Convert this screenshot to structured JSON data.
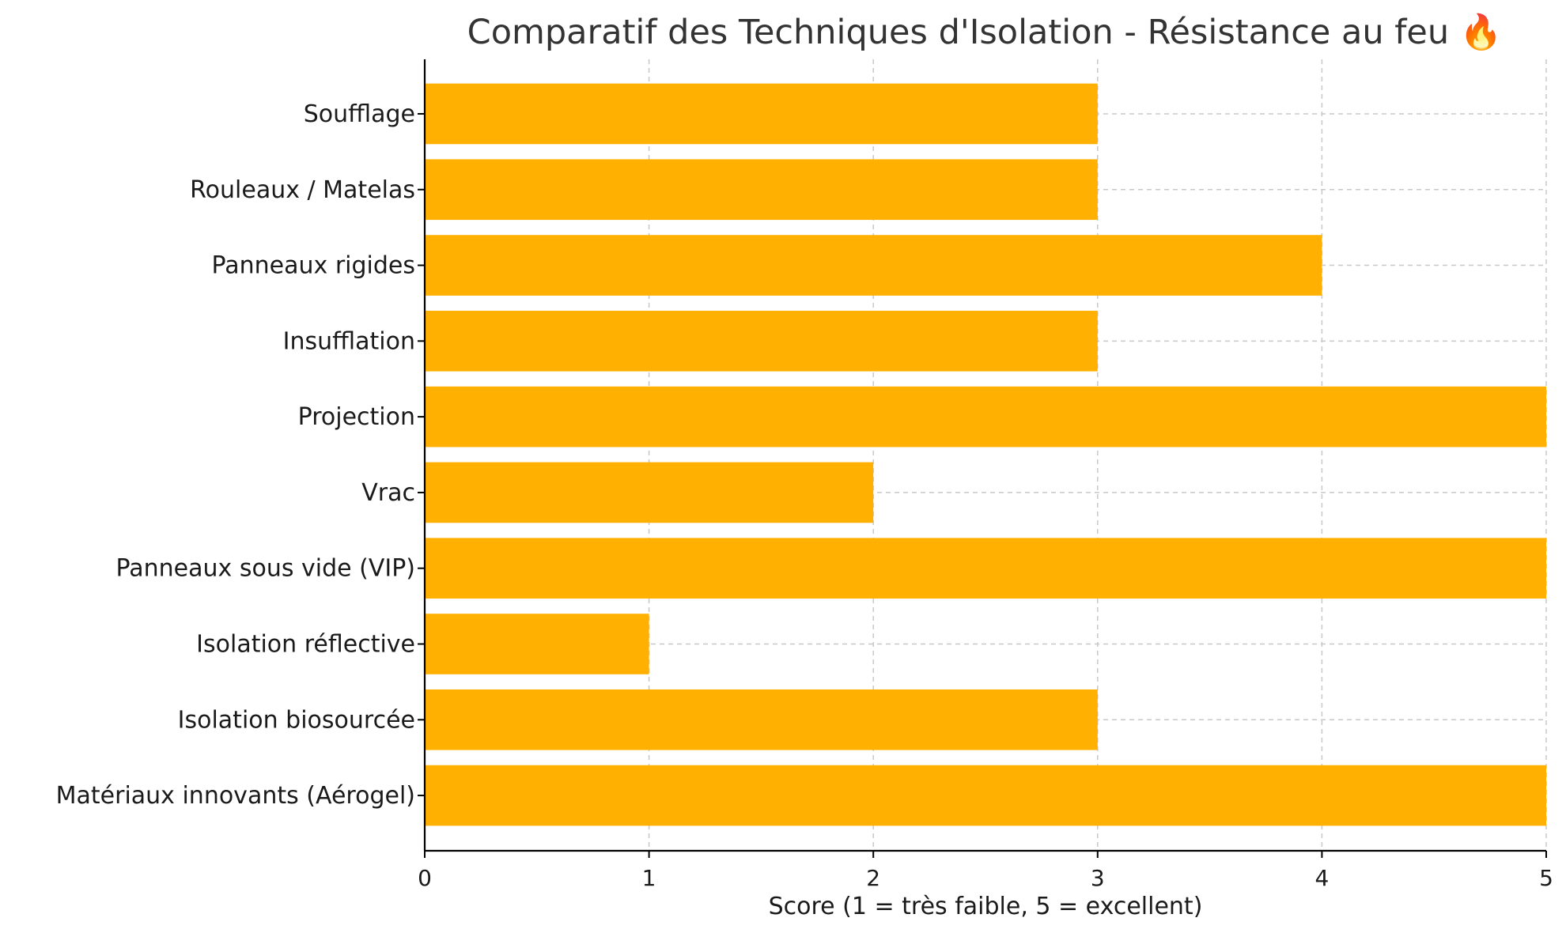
{
  "chart_data": {
    "type": "bar",
    "orientation": "horizontal",
    "title": "Comparatif des Techniques d'Isolation - Résistance au feu 🔥",
    "xlabel": "Score (1 = très faible, 5 = excellent)",
    "ylabel": "",
    "categories": [
      "Soufflage",
      "Rouleaux / Matelas",
      "Panneaux rigides",
      "Insufflation",
      "Projection",
      "Vrac",
      "Panneaux sous vide (VIP)",
      "Isolation réflective",
      "Isolation biosourcée",
      "Matériaux innovants (Aérogel)"
    ],
    "values": [
      3,
      3,
      4,
      3,
      5,
      2,
      5,
      1,
      3,
      5
    ],
    "xlim": [
      0,
      5
    ],
    "xticks": [
      "0",
      "1",
      "2",
      "3",
      "4",
      "5"
    ],
    "grid": true,
    "bar_color": "#FFB000",
    "legend": "none"
  }
}
